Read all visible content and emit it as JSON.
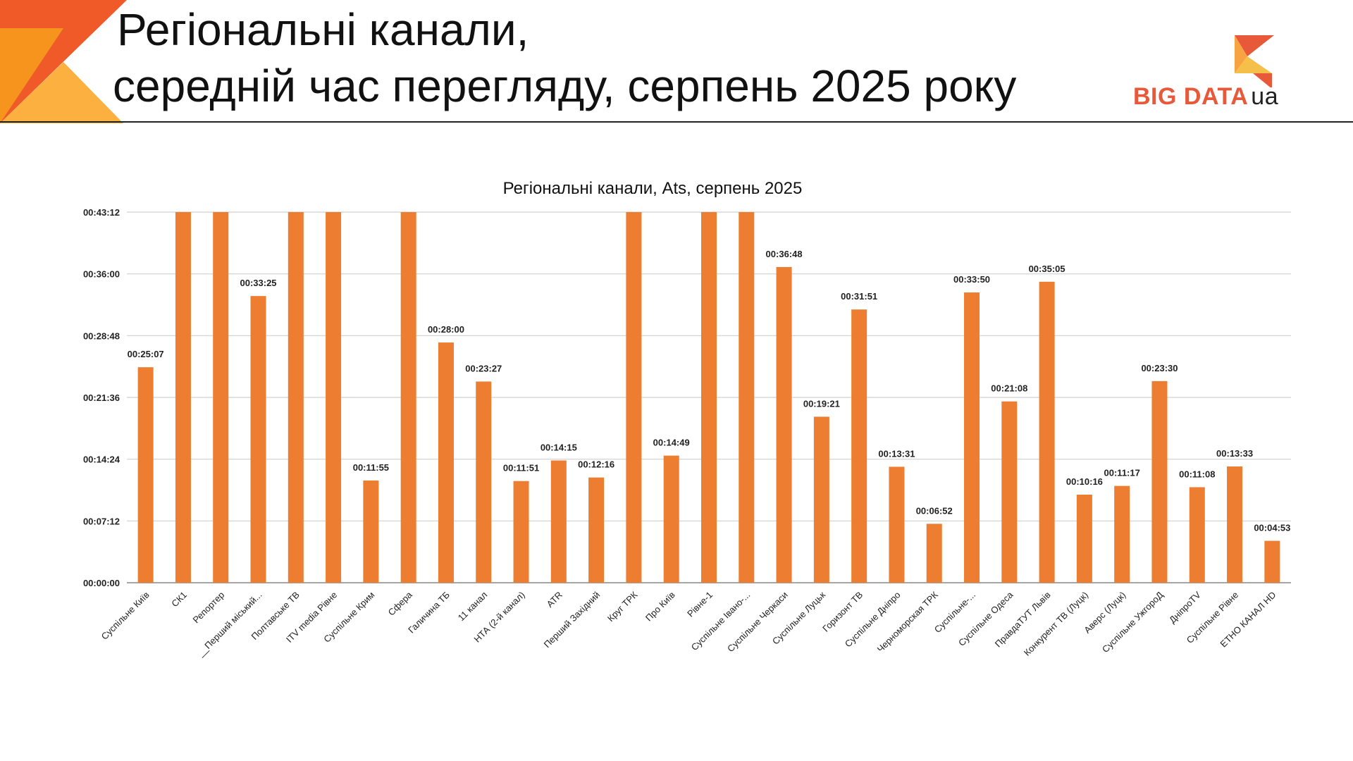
{
  "slide": {
    "title_line_1": "Регіональні канали,",
    "title_line_2": "середній час перегляду, серпень 2025 року"
  },
  "logo": {
    "text": "BIG DATA",
    "suffix": "ua",
    "colors": [
      "#e8593a",
      "#f7a341",
      "#f5c04a"
    ]
  },
  "colors": {
    "bar": "#ed7d31",
    "corner_dark": "#f05a28",
    "corner_mid": "#f7941d",
    "corner_light": "#fbb040"
  },
  "chart_data": {
    "type": "bar",
    "title": "Регіональні канали, Ats, серпень 2025",
    "xlabel": "",
    "ylabel": "",
    "ylim": [
      "00:00:00",
      "00:43:12"
    ],
    "yticks": [
      "00:00:00",
      "00:07:12",
      "00:14:24",
      "00:21:36",
      "00:28:48",
      "00:36:00",
      "00:43:12"
    ],
    "grid": true,
    "legend": "none",
    "categories": [
      "Суспільне Київ",
      "СК1",
      "Репортер",
      "__Перший міський...",
      "Полтавське ТВ",
      "ITV media Рівне",
      "Суспільне Крим",
      "Сфера",
      "Галичина ТБ",
      "11 канал",
      "НТА (2-й канал)",
      "ATR",
      "Перший Західний",
      "Круг ТРК",
      "Про Київ",
      "Рівне-1",
      "Суспільне Івано-...",
      "Суспільне Черкаси",
      "Суспільне Луцьк",
      "Горизонт ТВ",
      "Суспільне Дніпро",
      "Черноморская ТРК",
      "Суспільне-...",
      "Суспільне Одеса",
      "ПравдаТУТ Львів",
      "Конкурент ТВ (Луцк)",
      "Аверс (Луцк)",
      "Суспільне УжгороД",
      "ДніпроTV",
      "Суспільне Рівне",
      "ЕТНО КАНАЛ HD"
    ],
    "values": [
      "00:25:07",
      "00:43:12",
      "00:43:12",
      "00:33:25",
      "00:43:12",
      "00:43:12",
      "00:11:55",
      "00:43:12",
      "00:28:00",
      "00:23:27",
      "00:11:51",
      "00:14:15",
      "00:12:16",
      "00:43:12",
      "00:14:49",
      "00:43:12",
      "00:43:12",
      "00:36:48",
      "00:19:21",
      "00:31:51",
      "00:13:31",
      "00:06:52",
      "00:33:50",
      "00:21:08",
      "00:35:05",
      "00:10:16",
      "00:11:17",
      "00:23:30",
      "00:11:08",
      "00:13:33",
      "00:04:53"
    ],
    "data_labels": [
      "00:25:07",
      null,
      null,
      "00:33:25",
      null,
      null,
      "00:11:55",
      null,
      "00:28:00",
      "00:23:27",
      "00:11:51",
      "00:14:15",
      "00:12:16",
      null,
      "00:14:49",
      null,
      null,
      "00:36:48",
      "00:19:21",
      "00:31:51",
      "00:13:31",
      "00:06:52",
      "00:33:50",
      "00:21:08",
      "00:35:05",
      "00:10:16",
      "00:11:17",
      "00:23:30",
      "00:11:08",
      "00:13:33",
      "00:04:53"
    ]
  }
}
